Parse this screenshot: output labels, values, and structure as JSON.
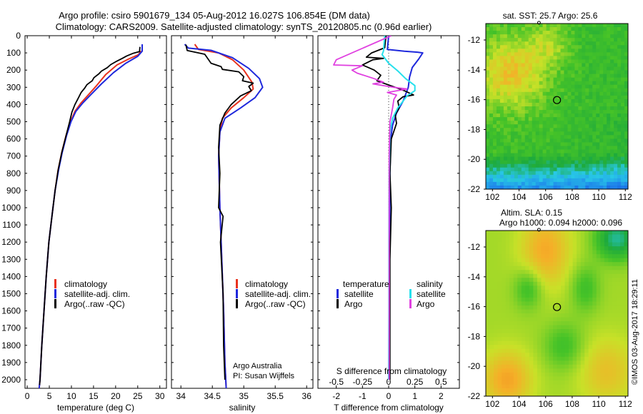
{
  "header": {
    "line1": "Argo profile: csiro 5901679_134 05-Aug-2012 16.027S 106.854E (DM data)",
    "line2": "Climatology: CARS2009. Satellite-adjusted climatology: synTS_20120805.nc (0.96d earlier)"
  },
  "footer": {
    "credit": "©IMOS 03-Aug-2017 18:29:11",
    "argo_australia": "Argo Australia",
    "pi": "PI: Susan Wijffels"
  },
  "colors": {
    "climatology": "#e8321e",
    "satellite": "#1e28dc",
    "argo": "#000000",
    "salinity_satellite": "#26e0ec",
    "salinity_argo": "#e040e0"
  },
  "chart_data": [
    {
      "type": "line",
      "id": "temperature",
      "xlabel": "temperature (deg C)",
      "xlim": [
        -0.5,
        31.5
      ],
      "xticks": [
        0,
        5,
        10,
        15,
        20,
        25,
        30
      ],
      "ylim": [
        2050,
        0
      ],
      "yticks": [
        0,
        100,
        200,
        300,
        400,
        500,
        600,
        700,
        800,
        900,
        1000,
        1100,
        1200,
        1300,
        1400,
        1500,
        1600,
        1700,
        1800,
        1900,
        2000
      ],
      "legend": [
        "climatology",
        "satellite-adj. clim.",
        "Argo(..raw -QC)"
      ],
      "series": [
        {
          "name": "climatology",
          "color": "#e8321e",
          "points": [
            [
              25.7,
              88
            ],
            [
              25.2,
              110
            ],
            [
              23.0,
              135
            ],
            [
              20.3,
              170
            ],
            [
              17.8,
              225
            ],
            [
              15.7,
              290
            ],
            [
              13.8,
              345
            ],
            [
              12.2,
              390
            ],
            [
              10.8,
              440
            ],
            [
              9.8,
              500
            ],
            [
              8.8,
              580
            ],
            [
              7.8,
              680
            ],
            [
              7.0,
              780
            ],
            [
              6.3,
              900
            ],
            [
              5.6,
              1050
            ],
            [
              4.9,
              1200
            ],
            [
              4.3,
              1400
            ],
            [
              3.8,
              1600
            ],
            [
              3.3,
              1800
            ],
            [
              2.9,
              2000
            ],
            [
              2.7,
              2050
            ]
          ]
        },
        {
          "name": "satellite",
          "color": "#1e28dc",
          "points": [
            [
              26.0,
              50
            ],
            [
              26.0,
              90
            ],
            [
              25.0,
              120
            ],
            [
              22.3,
              160
            ],
            [
              19.5,
              215
            ],
            [
              16.8,
              280
            ],
            [
              14.5,
              340
            ],
            [
              12.6,
              390
            ],
            [
              11.0,
              440
            ],
            [
              9.9,
              500
            ],
            [
              8.9,
              580
            ],
            [
              7.9,
              680
            ],
            [
              7.1,
              780
            ],
            [
              6.3,
              900
            ],
            [
              5.6,
              1050
            ],
            [
              4.9,
              1200
            ],
            [
              4.3,
              1400
            ],
            [
              3.8,
              1600
            ],
            [
              3.3,
              1800
            ],
            [
              2.9,
              2000
            ],
            [
              2.7,
              2050
            ]
          ]
        },
        {
          "name": "argo",
          "color": "#000000",
          "points": [
            [
              25.5,
              65
            ],
            [
              25.4,
              92
            ],
            [
              24.0,
              102
            ],
            [
              22.5,
              118
            ],
            [
              21.5,
              132
            ],
            [
              20.0,
              152
            ],
            [
              18.9,
              168
            ],
            [
              18.1,
              186
            ],
            [
              16.8,
              206
            ],
            [
              16.2,
              222
            ],
            [
              15.1,
              244
            ],
            [
              14.7,
              262
            ],
            [
              13.5,
              285
            ],
            [
              13.0,
              305
            ],
            [
              12.2,
              330
            ],
            [
              11.6,
              360
            ],
            [
              10.8,
              400
            ],
            [
              10.1,
              445
            ],
            [
              9.6,
              500
            ],
            [
              8.8,
              580
            ],
            [
              7.8,
              680
            ],
            [
              7.0,
              780
            ],
            [
              6.3,
              900
            ],
            [
              5.6,
              1050
            ],
            [
              4.9,
              1200
            ],
            [
              4.3,
              1400
            ],
            [
              3.8,
              1600
            ],
            [
              3.3,
              1800
            ],
            [
              2.9,
              2000
            ],
            [
              2.8,
              2030
            ]
          ]
        }
      ]
    },
    {
      "type": "line",
      "id": "salinity",
      "xlabel": "salinity",
      "xlim": [
        33.85,
        36.1
      ],
      "xticks": [
        34,
        34.5,
        35,
        35.5,
        36
      ],
      "ylim": [
        2050,
        0
      ],
      "legend": [
        "climatology",
        "satellite-adj. clim.",
        "Argo(..raw -QC)"
      ],
      "series": [
        {
          "name": "climatology",
          "color": "#e8321e",
          "points": [
            [
              34.22,
              50
            ],
            [
              34.28,
              80
            ],
            [
              34.6,
              100
            ],
            [
              34.82,
              140
            ],
            [
              35.0,
              200
            ],
            [
              35.13,
              270
            ],
            [
              35.15,
              310
            ],
            [
              35.0,
              360
            ],
            [
              34.8,
              420
            ],
            [
              34.66,
              480
            ],
            [
              34.62,
              560
            ],
            [
              34.6,
              700
            ],
            [
              34.62,
              1000
            ],
            [
              34.65,
              1300
            ],
            [
              34.68,
              1600
            ],
            [
              34.7,
              1900
            ],
            [
              34.72,
              2050
            ]
          ]
        },
        {
          "name": "satellite",
          "color": "#1e28dc",
          "points": [
            [
              34.06,
              50
            ],
            [
              34.12,
              72
            ],
            [
              34.48,
              85
            ],
            [
              34.82,
              128
            ],
            [
              35.08,
              190
            ],
            [
              35.25,
              250
            ],
            [
              35.3,
              300
            ],
            [
              35.18,
              360
            ],
            [
              34.95,
              420
            ],
            [
              34.7,
              480
            ],
            [
              34.62,
              560
            ],
            [
              34.6,
              700
            ],
            [
              34.62,
              1000
            ],
            [
              34.65,
              1300
            ],
            [
              34.68,
              1600
            ],
            [
              34.7,
              1900
            ],
            [
              34.72,
              2050
            ]
          ]
        },
        {
          "name": "argo",
          "color": "#000000",
          "points": [
            [
              34.08,
              52
            ],
            [
              34.1,
              86
            ],
            [
              34.38,
              108
            ],
            [
              34.48,
              160
            ],
            [
              34.64,
              180
            ],
            [
              34.66,
              196
            ],
            [
              34.92,
              210
            ],
            [
              35.0,
              238
            ],
            [
              34.98,
              262
            ],
            [
              35.15,
              276
            ],
            [
              35.08,
              295
            ],
            [
              35.12,
              320
            ],
            [
              34.95,
              350
            ],
            [
              34.8,
              400
            ],
            [
              34.7,
              450
            ],
            [
              34.62,
              520
            ],
            [
              34.6,
              650
            ],
            [
              34.62,
              800
            ],
            [
              34.6,
              1000
            ],
            [
              34.67,
              1050
            ],
            [
              34.63,
              1200
            ],
            [
              34.67,
              1500
            ],
            [
              34.68,
              1800
            ],
            [
              34.7,
              2000
            ]
          ]
        }
      ]
    },
    {
      "type": "line",
      "id": "difference",
      "xlabel": "T difference from climatology",
      "xlim": [
        -2.7,
        2.7
      ],
      "xticks": [
        -2,
        -1,
        0,
        1,
        2
      ],
      "top_axis_label": "S difference from climatology",
      "top_ticks": [
        {
          "label": "-0.5",
          "t": -2
        },
        {
          "label": "-0.25",
          "t": -1
        },
        {
          "label": "0",
          "t": 0
        },
        {
          "label": "0.25",
          "t": 1
        },
        {
          "label": "0.5",
          "t": 2
        }
      ],
      "ylim": [
        2050,
        0
      ],
      "legend_titles": [
        "temperature",
        "salinity"
      ],
      "legend": [
        "satellite",
        "Argo",
        "satellite",
        "Argo"
      ],
      "series": [
        {
          "name": "temperature satellite",
          "color": "#1e28dc",
          "points": [
            [
              0.0,
              0
            ],
            [
              -0.05,
              80
            ],
            [
              0.6,
              90
            ],
            [
              1.1,
              96
            ],
            [
              1.3,
              100
            ],
            [
              1.15,
              135
            ],
            [
              0.9,
              185
            ],
            [
              0.8,
              240
            ],
            [
              0.75,
              300
            ],
            [
              0.55,
              380
            ],
            [
              0.3,
              450
            ],
            [
              0.15,
              520
            ],
            [
              0.08,
              600
            ],
            [
              0.05,
              800
            ],
            [
              0.05,
              1000
            ],
            [
              0.03,
              1300
            ],
            [
              0.02,
              1600
            ],
            [
              0.01,
              2000
            ]
          ]
        },
        {
          "name": "temperature Argo",
          "color": "#000000",
          "points": [
            [
              -0.1,
              0
            ],
            [
              -0.15,
              70
            ],
            [
              -0.65,
              100
            ],
            [
              -0.85,
              125
            ],
            [
              -0.2,
              132
            ],
            [
              -0.6,
              140
            ],
            [
              -1.0,
              170
            ],
            [
              -0.55,
              200
            ],
            [
              -0.3,
              230
            ],
            [
              -0.45,
              262
            ],
            [
              0.25,
              300
            ],
            [
              0.6,
              320
            ],
            [
              0.95,
              345
            ],
            [
              0.55,
              355
            ],
            [
              0.35,
              380
            ],
            [
              0.4,
              420
            ],
            [
              0.25,
              460
            ],
            [
              0.3,
              510
            ],
            [
              0.1,
              600
            ],
            [
              0.05,
              800
            ],
            [
              0.1,
              1000
            ],
            [
              0.05,
              1300
            ],
            [
              0.05,
              1600
            ],
            [
              0.05,
              2000
            ]
          ]
        },
        {
          "name": "salinity satellite",
          "color": "#26e0ec",
          "points": [
            [
              -0.15,
              0
            ],
            [
              -0.2,
              90
            ],
            [
              -0.25,
              110
            ],
            [
              0.0,
              160
            ],
            [
              0.35,
              205
            ],
            [
              0.65,
              250
            ],
            [
              1.0,
              290
            ],
            [
              1.0,
              320
            ],
            [
              0.7,
              350
            ],
            [
              0.55,
              380
            ],
            [
              0.35,
              420
            ],
            [
              0.15,
              480
            ],
            [
              0.05,
              560
            ],
            [
              0.02,
              800
            ],
            [
              0.01,
              1200
            ],
            [
              0.01,
              1600
            ],
            [
              0.0,
              2000
            ]
          ]
        },
        {
          "name": "salinity Argo",
          "color": "#e040e0",
          "points": [
            [
              0.1,
              0
            ],
            [
              -2.0,
              140
            ],
            [
              -2.1,
              170
            ],
            [
              -1.0,
              175
            ],
            [
              -1.4,
              200
            ],
            [
              -1.2,
              218
            ],
            [
              -0.55,
              250
            ],
            [
              -0.2,
              270
            ],
            [
              -0.6,
              280
            ],
            [
              0.2,
              300
            ],
            [
              0.7,
              310
            ],
            [
              -0.05,
              330
            ],
            [
              0.3,
              345
            ],
            [
              0.2,
              370
            ],
            [
              0.15,
              420
            ],
            [
              0.05,
              500
            ],
            [
              0.02,
              700
            ],
            [
              0.02,
              1000
            ],
            [
              0.02,
              1500
            ],
            [
              0.02,
              2000
            ]
          ]
        }
      ]
    },
    {
      "type": "heatmap",
      "id": "sst_map",
      "title": "sat. SST: 25.7 Argo: 25.6",
      "xlim": [
        101.5,
        112.2
      ],
      "ylim": [
        -22,
        -10.9
      ],
      "xticks": [
        102,
        104,
        106,
        108,
        110,
        112
      ],
      "yticks": [
        -12,
        -14,
        -16,
        -18,
        -20,
        -22
      ],
      "argo_position": {
        "lon": 106.854,
        "lat": -16.027
      },
      "previous_position": {
        "lon": 105.5,
        "lat": -10.8
      }
    },
    {
      "type": "heatmap",
      "id": "sla_map",
      "title": "Altim. SLA: 0.15",
      "subtitle": "Argo h1000: 0.094 h2000: 0.096",
      "xlim": [
        101.5,
        112.2
      ],
      "ylim": [
        -22,
        -10.9
      ],
      "xticks": [
        102,
        104,
        106,
        108,
        110,
        112
      ],
      "yticks": [
        -12,
        -14,
        -16,
        -18,
        -20,
        -22
      ],
      "argo_position": {
        "lon": 106.854,
        "lat": -16.027
      },
      "previous_position": {
        "lon": 105.5,
        "lat": -10.8
      }
    }
  ]
}
